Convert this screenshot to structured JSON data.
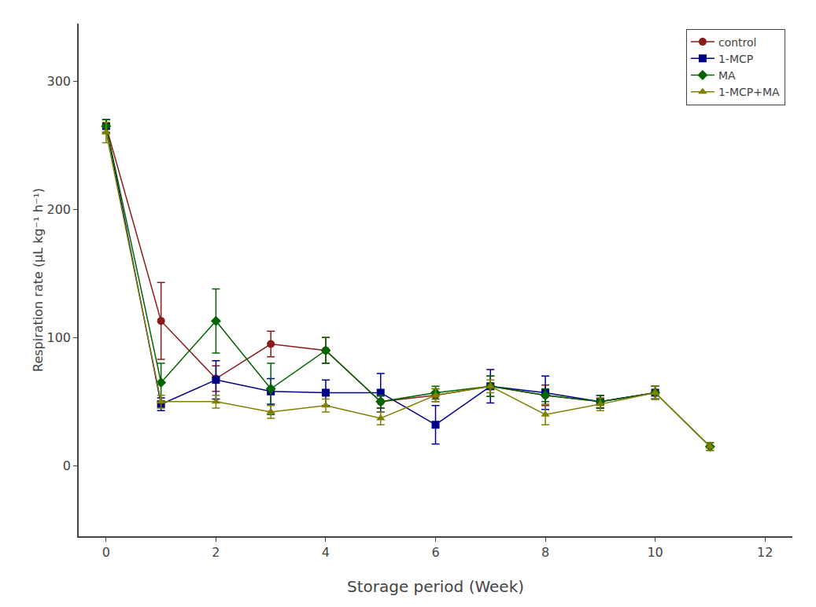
{
  "chart_data": {
    "type": "line",
    "xlabel": "Storage period (Week)",
    "ylabel": "Respiration rate (μL kg⁻¹ h⁻¹)",
    "xlim": [
      -0.5,
      12.5
    ],
    "ylim": [
      -55,
      345
    ],
    "xticks": [
      0,
      2,
      4,
      6,
      8,
      10,
      12
    ],
    "yticks": [
      0,
      100,
      200,
      300
    ],
    "grid": false,
    "legend": "upper right",
    "series": [
      {
        "name": "control",
        "color": "#8B1A1A",
        "marker": "circle",
        "x": [
          0,
          1,
          2,
          3,
          4,
          5,
          6,
          7,
          8,
          9,
          10
        ],
        "values": [
          265,
          113,
          68,
          95,
          90,
          50,
          55,
          62,
          55,
          50,
          57
        ],
        "yerr": [
          5,
          30,
          10,
          10,
          10,
          5,
          5,
          8,
          8,
          5,
          5
        ]
      },
      {
        "name": "1-MCP",
        "color": "#00008B",
        "marker": "square",
        "x": [
          0,
          1,
          2,
          3,
          4,
          5,
          6,
          7,
          8,
          9,
          10
        ],
        "values": [
          265,
          48,
          67,
          58,
          57,
          57,
          32,
          62,
          57,
          50,
          57
        ],
        "yerr": [
          5,
          5,
          15,
          10,
          10,
          15,
          15,
          13,
          13,
          5,
          5
        ]
      },
      {
        "name": "MA",
        "color": "#006400",
        "marker": "diamond",
        "x": [
          0,
          1,
          2,
          3,
          4,
          5,
          6,
          7,
          8,
          9,
          10,
          11
        ],
        "values": [
          265,
          65,
          113,
          60,
          90,
          50,
          57,
          62,
          55,
          50,
          57,
          15
        ],
        "yerr": [
          5,
          15,
          25,
          20,
          10,
          5,
          5,
          8,
          5,
          5,
          5,
          3
        ]
      },
      {
        "name": "1-MCP+MA",
        "color": "#808000",
        "marker": "triangle-up",
        "x": [
          0,
          1,
          2,
          3,
          4,
          5,
          6,
          7,
          8,
          9,
          10,
          11
        ],
        "values": [
          260,
          50,
          50,
          42,
          47,
          37,
          55,
          62,
          40,
          48,
          57,
          15
        ],
        "yerr": [
          8,
          5,
          5,
          5,
          5,
          5,
          5,
          5,
          8,
          5,
          5,
          3
        ]
      }
    ]
  }
}
